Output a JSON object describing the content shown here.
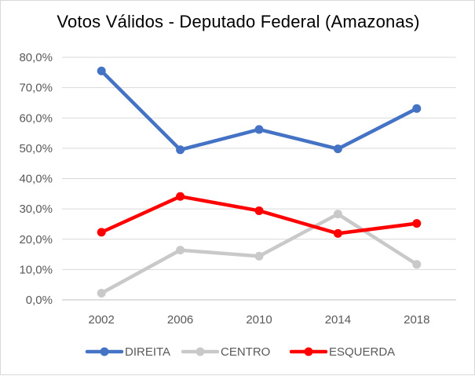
{
  "chart_data": {
    "type": "line",
    "title": "Votos Válidos  - Deputado Federal (Amazonas)",
    "xlabel": "",
    "ylabel": "",
    "categories": [
      "2002",
      "2006",
      "2010",
      "2014",
      "2018"
    ],
    "ylim": [
      0,
      80
    ],
    "y_ticks": [
      0,
      10,
      20,
      30,
      40,
      50,
      60,
      70,
      80
    ],
    "y_tick_labels": [
      "0,0%",
      "10,0%",
      "20,0%",
      "30,0%",
      "40,0%",
      "50,0%",
      "60,0%",
      "70,0%",
      "80,0%"
    ],
    "grid": "horizontal",
    "legend_position": "bottom",
    "series": [
      {
        "name": "DIREITA",
        "color": "#4472c4",
        "values": [
          75.5,
          49.5,
          56.2,
          49.8,
          63.1
        ]
      },
      {
        "name": "CENTRO",
        "color": "#c9c9c9",
        "values": [
          2.2,
          16.4,
          14.4,
          28.3,
          11.7
        ]
      },
      {
        "name": "ESQUERDA",
        "color": "#ff0000",
        "values": [
          22.3,
          34.1,
          29.4,
          21.9,
          25.2
        ]
      }
    ]
  }
}
